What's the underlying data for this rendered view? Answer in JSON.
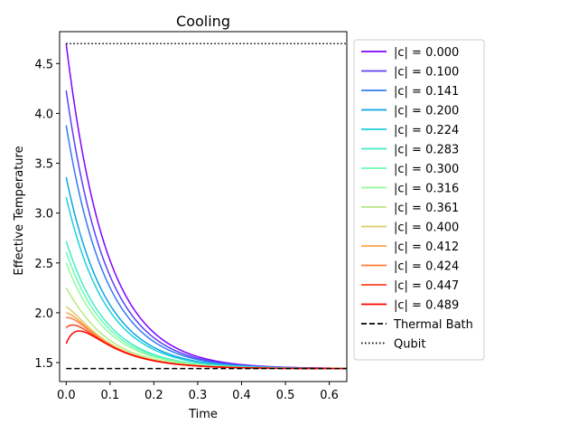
{
  "chart_data": {
    "type": "line",
    "title": "Cooling",
    "xlabel": "Time",
    "ylabel": "Effective Temperature",
    "xlim": [
      -0.015,
      0.64
    ],
    "ylim": [
      1.31,
      4.82
    ],
    "xticks": [
      0.0,
      0.1,
      0.2,
      0.3,
      0.4,
      0.5,
      0.6
    ],
    "xtick_labels": [
      "0.0",
      "0.1",
      "0.2",
      "0.3",
      "0.4",
      "0.5",
      "0.6"
    ],
    "yticks": [
      1.5,
      2.0,
      2.5,
      3.0,
      3.5,
      4.0,
      4.5
    ],
    "ytick_labels": [
      "1.5",
      "2.0",
      "2.5",
      "3.0",
      "3.5",
      "4.0",
      "4.5"
    ],
    "grid": false,
    "legend_position": "outside-right",
    "thermal_bath": {
      "name": "Thermal Bath",
      "value": 1.44,
      "style": "dashed",
      "color": "#000000"
    },
    "qubit": {
      "name": "Qubit",
      "value": 4.7,
      "style": "dotted",
      "color": "#000000"
    },
    "decay_rate": 11.0,
    "series": [
      {
        "name": "|c| = 0.000",
        "c": 0.0,
        "y0": 4.7,
        "color": "#8000ff"
      },
      {
        "name": "|c| = 0.100",
        "c": 0.1,
        "y0": 4.23,
        "color": "#5a3ffb"
      },
      {
        "name": "|c| = 0.141",
        "c": 0.141,
        "y0": 3.88,
        "color": "#337af2"
      },
      {
        "name": "|c| = 0.200",
        "c": 0.2,
        "y0": 3.36,
        "color": "#0ca5e5"
      },
      {
        "name": "|c| = 0.224",
        "c": 0.224,
        "y0": 3.16,
        "color": "#1cd0da"
      },
      {
        "name": "|c| = 0.283",
        "c": 0.283,
        "y0": 2.72,
        "color": "#43ecc8"
      },
      {
        "name": "|c| = 0.300",
        "c": 0.3,
        "y0": 2.61,
        "color": "#6afcb3"
      },
      {
        "name": "|c| = 0.316",
        "c": 0.316,
        "y0": 2.5,
        "color": "#91fc9b"
      },
      {
        "name": "|c| = 0.361",
        "c": 0.361,
        "y0": 2.25,
        "color": "#b7ea82"
      },
      {
        "name": "|c| = 0.400",
        "c": 0.4,
        "y0": 2.06,
        "color": "#dbcc67"
      },
      {
        "name": "|c| = 0.412",
        "c": 0.412,
        "y0": 2.0,
        "color": "#ffa44c"
      },
      {
        "name": "|c| = 0.424",
        "c": 0.424,
        "y0": 1.95,
        "color": "#ff7a38"
      },
      {
        "name": "|c| = 0.447",
        "c": 0.447,
        "y0": 1.85,
        "color": "#ff4320"
      },
      {
        "name": "|c| = 0.489",
        "c": 0.489,
        "y0": 1.69,
        "color": "#ff0000"
      }
    ]
  }
}
